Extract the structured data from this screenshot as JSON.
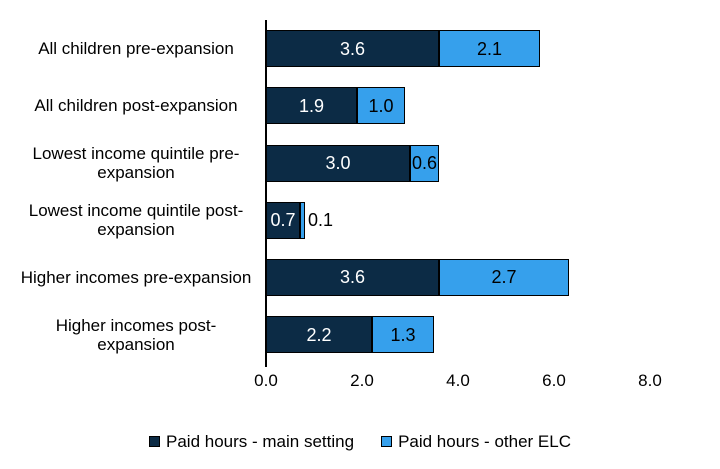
{
  "chart_data": {
    "type": "bar",
    "orientation": "horizontal-stacked",
    "title": "",
    "xlabel": "",
    "ylabel": "",
    "grid": "off",
    "legend_position": "bottom",
    "categories": [
      "All children pre-expansion",
      "All children post-expansion",
      "Lowest income quintile pre-\nexpansion",
      "Lowest income quintile post-\nexpansion",
      "Higher incomes pre-expansion",
      "Higher incomes post-\nexpansion"
    ],
    "series": [
      {
        "name": "Paid hours - main setting",
        "color": "#0C2B45",
        "label_color": "#FFFFFF",
        "values": [
          3.6,
          1.9,
          3.0,
          0.7,
          3.6,
          2.2
        ]
      },
      {
        "name": "Paid hours - other ELC",
        "color": "#36A0EC",
        "label_color": "#000000",
        "values": [
          2.1,
          1.0,
          0.6,
          0.1,
          2.7,
          1.3
        ]
      }
    ],
    "xlim": [
      0,
      8
    ],
    "x_ticks": [
      "0.0",
      "2.0",
      "4.0",
      "6.0",
      "8.0"
    ]
  },
  "colors": {
    "bar_border": "#000000",
    "axis": "#000000",
    "text": "#000000",
    "background": "#FFFFFF"
  }
}
